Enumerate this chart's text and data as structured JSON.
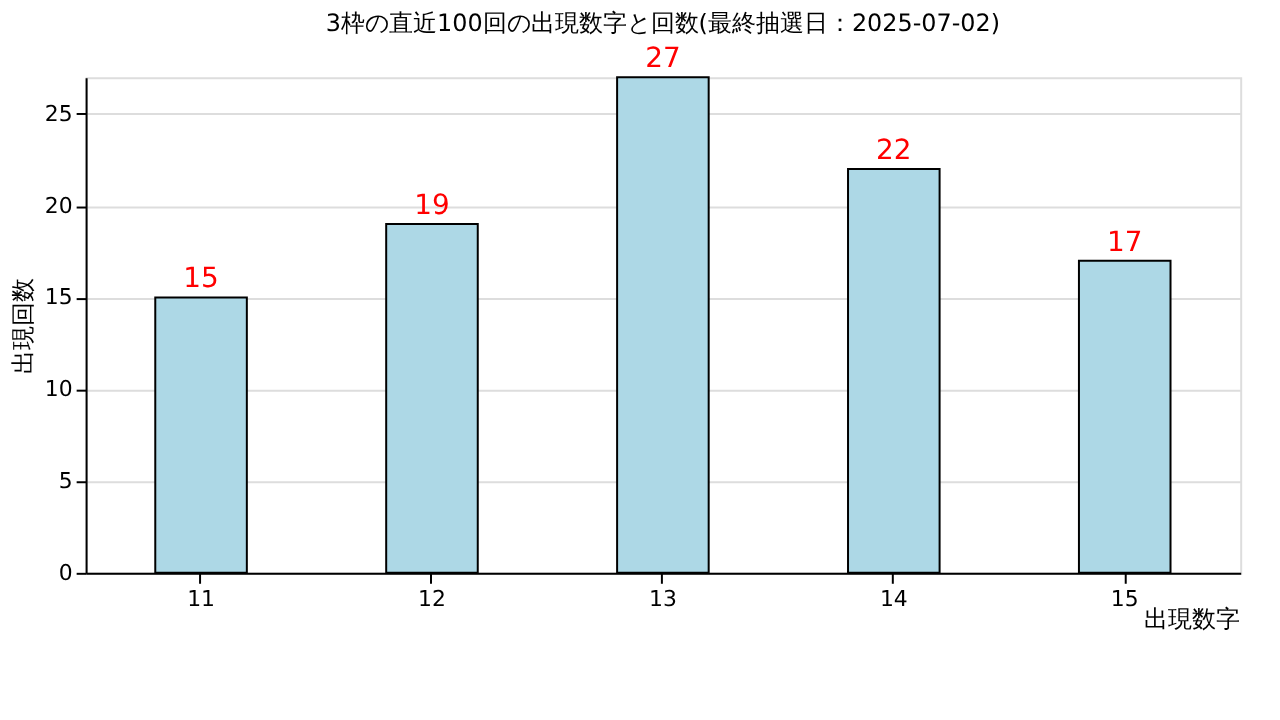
{
  "chart_data": {
    "type": "bar",
    "title": "3枠の直近100回の出現数字と回数(最終抽選日：2025-07-02)",
    "xlabel": "出現数字",
    "ylabel": "出現回数",
    "categories": [
      "11",
      "12",
      "13",
      "14",
      "15"
    ],
    "values": [
      15,
      19,
      27,
      22,
      17
    ],
    "color": "#add8e6",
    "ylim": [
      0,
      27
    ],
    "yticks": [
      0,
      5,
      10,
      15,
      20,
      25
    ],
    "grid": "y",
    "data_labels": true
  }
}
